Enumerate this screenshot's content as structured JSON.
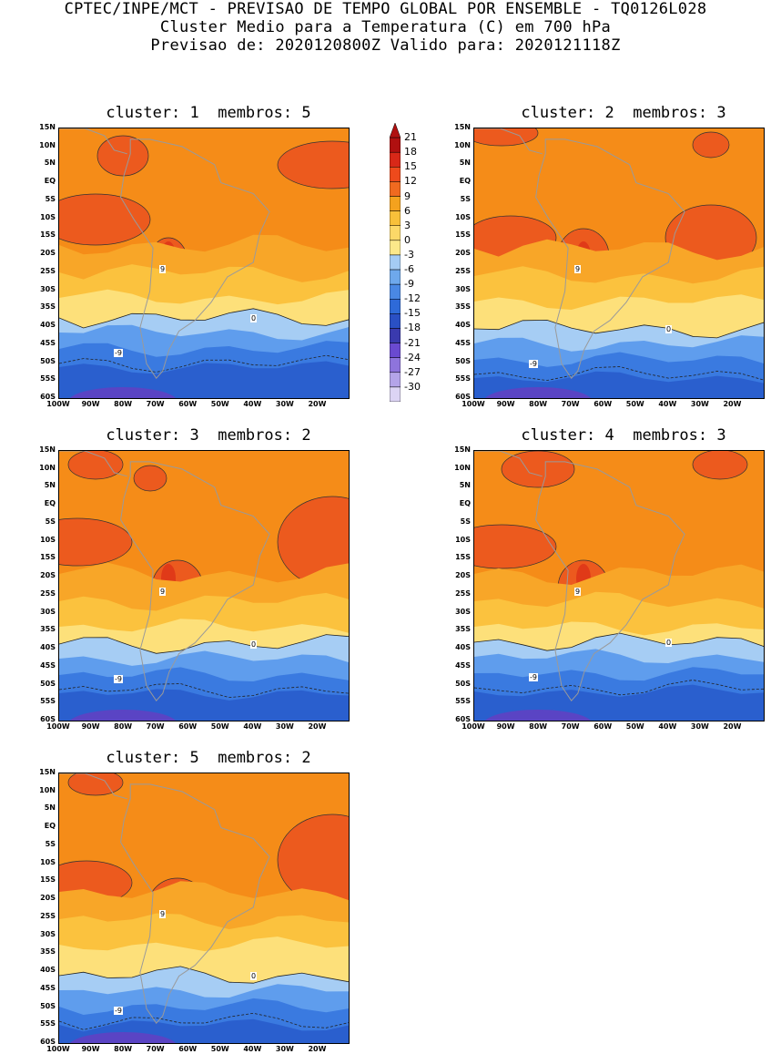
{
  "header": {
    "line1": "CPTEC/INPE/MCT - PREVISAO DE TEMPO GLOBAL POR ENSEMBLE - TQ0126L028",
    "line2": "Cluster Medio para a Temperatura (C) em 700 hPa",
    "line3": "Previsao de: 2020120800Z   Valido para: 2020121118Z"
  },
  "panels": [
    {
      "title": "cluster: 1  membros: 5"
    },
    {
      "title": "cluster: 2  membros: 3"
    },
    {
      "title": "cluster: 3  membros: 2"
    },
    {
      "title": "cluster: 4  membros: 3"
    },
    {
      "title": "cluster: 5  membros: 2"
    }
  ],
  "lat_labels": [
    "15N",
    "10N",
    "5N",
    "EQ",
    "5S",
    "10S",
    "15S",
    "20S",
    "25S",
    "30S",
    "35S",
    "40S",
    "45S",
    "50S",
    "55S",
    "60S"
  ],
  "lon_labels": [
    "100W",
    "90W",
    "80W",
    "70W",
    "60W",
    "50W",
    "40W",
    "30W",
    "20W"
  ],
  "contour_labels": {
    "warm": "9",
    "zero": "0",
    "cold": "-9"
  },
  "colorbar": {
    "levels": [
      "21",
      "18",
      "15",
      "12",
      "9",
      "6",
      "3",
      "0",
      "-3",
      "-6",
      "-9",
      "-12",
      "-15",
      "-18",
      "-21",
      "-24",
      "-27",
      "-30"
    ],
    "colors": [
      "#b01010",
      "#d82818",
      "#ee4a1c",
      "#f06a20",
      "#f4a21e",
      "#f8c03a",
      "#fcd868",
      "#fbe88a",
      "#a4ccf4",
      "#6ea8ec",
      "#4a88e4",
      "#2e6ad8",
      "#2a50c4",
      "#3a3aae",
      "#6a4ad0",
      "#8e74dc",
      "#b4a4e8",
      "#dcd4f4"
    ]
  },
  "colors": {
    "band_warm_top": "#f58c18",
    "band_mid": "#f8a628",
    "band_lowmid": "#fbc23e",
    "band_light": "#fde07a",
    "band_cold1": "#a6cdf4",
    "band_cold2": "#5f9ded",
    "band_cold3": "#3a7ae0",
    "band_cold4": "#2a5fce",
    "band_polar": "#5a44c4",
    "hot_patch": "#ec5a1e",
    "hotter_patch": "#e03a18",
    "coast": "#9a9a9a"
  }
}
